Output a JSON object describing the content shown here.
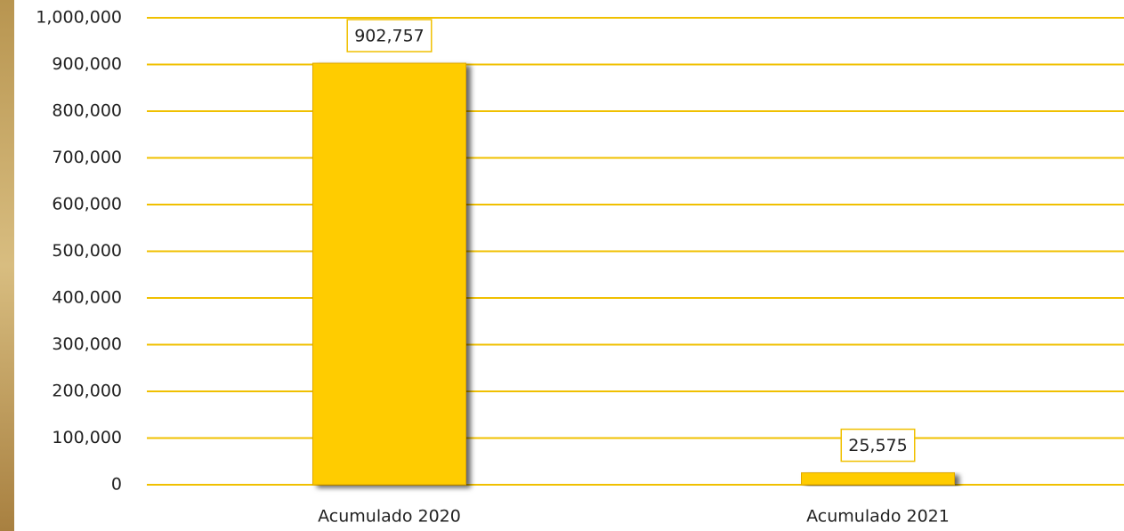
{
  "chart_data": {
    "type": "bar",
    "categories": [
      "Acumulado 2020",
      "Acumulado 2021"
    ],
    "values": [
      902757,
      25575
    ],
    "value_labels": [
      "902,757",
      "25,575"
    ],
    "color": "#ffcc00",
    "grid_color": "#f0c000",
    "ylim": [
      0,
      1000000
    ],
    "yticks": [
      0,
      {
        "value": 100000,
        "label": "100,000"
      },
      {
        "value": 200000,
        "label": "200,000"
      },
      {
        "value": 300000,
        "label": "300,000"
      },
      {
        "value": 400000,
        "label": "400,000"
      },
      {
        "value": 500000,
        "label": "500,000"
      },
      {
        "value": 600000,
        "label": "600,000"
      },
      {
        "value": 700000,
        "label": "700,000"
      },
      {
        "value": 800000,
        "label": "800,000"
      },
      {
        "value": 900000,
        "label": "900,000"
      },
      {
        "value": 1000000,
        "label": "1,000,000"
      }
    ],
    "grid": true
  }
}
